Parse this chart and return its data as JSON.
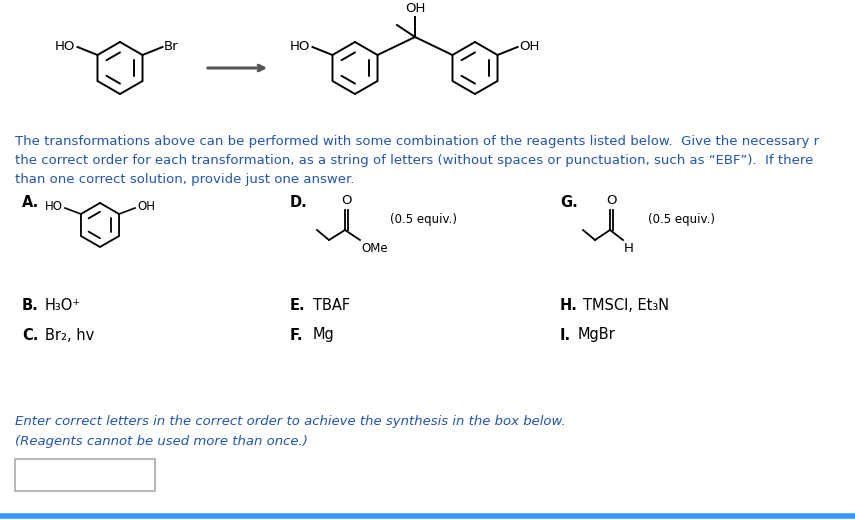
{
  "bg_color": "#ffffff",
  "text_color": "#000000",
  "blue_color": "#2255aa",
  "paragraph1": "The transformations above can be performed with some combination of the reagents listed below.  Give the necessary r",
  "paragraph2": "the correct order for each transformation, as a string of letters (without spaces or punctuation, such as “EBF”).  If there",
  "paragraph3": "than one correct solution, provide just one answer.",
  "reagent_B_text": "H₃O⁺",
  "reagent_C_text": "Br₂, hv",
  "reagent_E_text": "TBAF",
  "reagent_F_text": "Mg",
  "reagent_H_text": "TMSCl, Et₃N",
  "reagent_I_text": "MgBr",
  "enter_text": "Enter correct letters in the correct order to achieve the synthesis in the box below.",
  "reagents_note": "(Reagents cannot be used more than once.)"
}
